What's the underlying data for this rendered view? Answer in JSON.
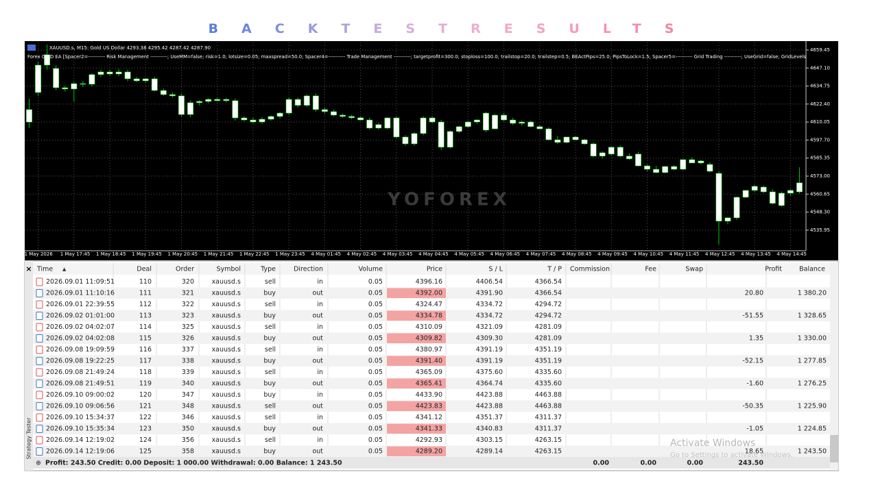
{
  "title": "BACKTESTRESULTS",
  "chart_data": {
    "type": "candlestick",
    "symbol_line": "XAUUSD.s, M15:  Gold US Dollar  4293.38 4295.42 4287.42 4287.90",
    "params_line": "Forex GRID EA [Spacer2=---------- Risk Management ----------; UseMM=false; risk=1.0; lotsize=0.05; maxspread=50.0; Spacer4=---------- Trade Management ----------; targetprofit=300.0; stoploss=100.0; trailstop=20.0; trailstep=0.5; BEActPips=25.0; PipsToLock=1.5; Spacer5=---------- Grid Trading ----------; UseGrid=false; GridLevels",
    "watermark": "YOFOREX",
    "grid": true,
    "candle_color": "#ffffff",
    "wick_color": "#00c800",
    "ylim": [
      4522.3,
      4664.6
    ],
    "yticks": [
      4659.45,
      {
        "value": 4647.1,
        "label": "4647.10"
      },
      4634.75,
      {
        "value": 4622.4,
        "label": "4622.40"
      },
      4610.05,
      {
        "value": 4597.7,
        "label": "4597.70"
      },
      4585.35,
      {
        "value": 4573,
        "label": "4573.00"
      },
      4560.65,
      {
        "value": 4548.3,
        "label": "4548.30"
      },
      4535.95
    ],
    "categories": [
      null,
      "1 May 2026",
      null,
      null,
      null,
      "1 May 17:45",
      null,
      null,
      null,
      "1 May 18:45",
      null,
      null,
      null,
      "1 May 19:45",
      null,
      null,
      null,
      "1 May 20:45",
      null,
      null,
      null,
      "1 May 21:45",
      null,
      null,
      null,
      "1 May 22:45",
      null,
      null,
      null,
      "1 May 23:45",
      null,
      null,
      null,
      "4 May 01:45",
      null,
      null,
      null,
      "4 May 02:45",
      null,
      null,
      null,
      "4 May 03:45",
      null,
      null,
      null,
      "4 May 04:45",
      null,
      null,
      null,
      "4 May 05:45",
      null,
      null,
      null,
      "4 May 06:45",
      null,
      null,
      null,
      "4 May 07:45",
      null,
      null,
      null,
      "4 May 08:45",
      null,
      null,
      null,
      "4 May 09:45",
      null,
      null,
      null,
      "4 May 10:45",
      null,
      null,
      null,
      "4 May 11:45",
      null,
      null,
      null,
      "4 May 12:45",
      null,
      null,
      null,
      "4 May 13:45",
      null,
      null,
      null,
      "4 May 14:45",
      null
    ],
    "candles": [
      [
        4610.0,
        4626.0,
        4606.0,
        4618.6
      ],
      [
        4630.3,
        4651.5,
        4628.0,
        4649.1
      ],
      [
        4649.1,
        4663.2,
        4646.0,
        4656.2
      ],
      [
        4646.8,
        4649.0,
        4632.0,
        4633.6
      ],
      [
        4633.6,
        4635.0,
        4631.0,
        4632.7
      ],
      [
        4632.7,
        4637.4,
        4624.0,
        4636.4
      ],
      [
        4636.4,
        4638.0,
        4634.0,
        4636.0
      ],
      [
        4636.0,
        4643.5,
        4634.5,
        4642.6
      ],
      [
        4642.6,
        4646.0,
        4641.0,
        4644.4
      ],
      [
        4644.4,
        4646.0,
        4642.0,
        4643.0
      ],
      [
        4643.0,
        4646.5,
        4641.5,
        4644.4
      ],
      [
        4644.4,
        4646.0,
        4638.0,
        4639.7
      ],
      [
        4639.7,
        4641.0,
        4637.5,
        4638.3
      ],
      [
        4638.3,
        4640.0,
        4637.0,
        4639.7
      ],
      [
        4639.7,
        4641.0,
        4631.0,
        4631.7
      ],
      [
        4631.7,
        4633.0,
        4628.0,
        4628.9
      ],
      [
        4628.9,
        4630.5,
        4627.0,
        4628.0
      ],
      [
        4628.0,
        4629.5,
        4614.0,
        4615.2
      ],
      [
        4615.2,
        4625.0,
        4613.5,
        4623.3
      ],
      [
        4623.3,
        4625.0,
        4621.5,
        4624.2
      ],
      [
        4624.2,
        4626.5,
        4623.0,
        4625.6
      ],
      [
        4625.6,
        4627.0,
        4624.0,
        4624.7
      ],
      [
        4624.7,
        4626.5,
        4623.5,
        4625.6
      ],
      [
        4624.7,
        4626.0,
        4611.0,
        4612.9
      ],
      [
        4612.9,
        4614.0,
        4610.5,
        4611.5
      ],
      [
        4611.5,
        4613.0,
        4609.0,
        4610.1
      ],
      [
        4610.1,
        4613.5,
        4609.0,
        4612.0
      ],
      [
        4612.0,
        4614.5,
        4611.0,
        4613.9
      ],
      [
        4613.9,
        4617.0,
        4612.5,
        4616.2
      ],
      [
        4616.2,
        4627.0,
        4615.0,
        4625.6
      ],
      [
        4625.6,
        4627.0,
        4620.0,
        4621.5
      ],
      [
        4621.5,
        4629.0,
        4620.5,
        4628.0
      ],
      [
        4628.0,
        4629.5,
        4617.0,
        4618.6
      ],
      [
        4618.6,
        4620.0,
        4616.0,
        4617.2
      ],
      [
        4617.2,
        4618.5,
        4614.0,
        4614.8
      ],
      [
        4614.8,
        4616.0,
        4613.0,
        4613.9
      ],
      [
        4613.9,
        4615.0,
        4612.0,
        4613.0
      ],
      [
        4613.0,
        4614.0,
        4611.0,
        4611.5
      ],
      [
        4611.5,
        4613.0,
        4605.0,
        4605.9
      ],
      [
        4605.9,
        4609.5,
        4605.0,
        4608.3
      ],
      [
        4605.9,
        4613.5,
        4605.0,
        4612.9
      ],
      [
        4612.9,
        4614.0,
        4599.0,
        4599.8
      ],
      [
        4599.8,
        4601.0,
        4594.0,
        4595.1
      ],
      [
        4595.1,
        4603.0,
        4594.0,
        4602.2
      ],
      [
        4602.2,
        4614.0,
        4601.0,
        4612.9
      ],
      [
        4612.9,
        4614.0,
        4609.0,
        4610.1
      ],
      [
        4610.1,
        4611.5,
        4591.0,
        4592.8
      ],
      [
        4592.8,
        4604.5,
        4592.0,
        4603.6
      ],
      [
        4603.6,
        4607.5,
        4602.5,
        4606.9
      ],
      [
        4606.9,
        4611.0,
        4606.0,
        4610.1
      ],
      [
        4610.1,
        4612.0,
        4609.0,
        4611.5
      ],
      [
        4604.5,
        4617.0,
        4603.0,
        4616.2
      ],
      [
        4605.4,
        4615.5,
        4605.0,
        4614.8
      ],
      [
        4614.8,
        4616.5,
        4610.5,
        4611.5
      ],
      [
        4611.5,
        4613.0,
        4608.0,
        4609.2
      ],
      [
        4609.2,
        4611.0,
        4607.5,
        4610.1
      ],
      [
        4610.1,
        4611.0,
        4606.5,
        4606.9
      ],
      [
        4606.9,
        4608.0,
        4605.0,
        4605.4
      ],
      [
        4605.4,
        4606.5,
        4597.5,
        4597.9
      ],
      [
        4597.9,
        4600.5,
        4595.0,
        4596.1
      ],
      [
        4596.1,
        4600.0,
        4595.5,
        4599.8
      ],
      [
        4599.8,
        4600.5,
        4597.5,
        4597.9
      ],
      [
        4597.9,
        4598.5,
        4594.5,
        4595.1
      ],
      [
        4595.1,
        4596.0,
        4586.0,
        4586.7
      ],
      [
        4586.7,
        4590.0,
        4585.0,
        4589.0
      ],
      [
        4588.1,
        4593.5,
        4587.0,
        4592.8
      ],
      [
        4592.8,
        4594.0,
        4586.0,
        4586.7
      ],
      [
        4586.7,
        4588.5,
        4584.0,
        4584.8
      ],
      [
        4588.1,
        4589.5,
        4579.5,
        4580.0
      ],
      [
        4580.0,
        4581.0,
        4576.5,
        4577.7
      ],
      [
        4577.7,
        4580.0,
        4575.0,
        4575.4
      ],
      [
        4575.4,
        4580.0,
        4575.0,
        4579.6
      ],
      [
        4579.6,
        4580.5,
        4577.0,
        4577.7
      ],
      [
        4577.7,
        4584.5,
        4577.0,
        4584.3
      ],
      [
        4584.3,
        4586.0,
        4582.0,
        4582.0
      ],
      [
        4582.0,
        4584.0,
        4581.0,
        4583.4
      ],
      [
        4581.0,
        4582.5,
        4575.5,
        4576.3
      ],
      [
        4574.9,
        4576.0,
        4526.1,
        4542.1
      ],
      [
        4542.1,
        4544.8,
        4540.0,
        4544.4
      ],
      [
        4544.4,
        4559.0,
        4543.0,
        4558.5
      ],
      [
        4558.5,
        4563.5,
        4558.0,
        4563.2
      ],
      [
        4563.2,
        4567.0,
        4562.0,
        4566.0
      ],
      [
        4562.2,
        4566.5,
        4561.5,
        4565.5
      ],
      [
        4562.2,
        4564.0,
        4553.5,
        4554.3
      ],
      [
        4552.8,
        4562.5,
        4552.0,
        4561.3
      ],
      [
        4561.3,
        4564.0,
        4559.5,
        4563.2
      ],
      [
        4562.2,
        4579.0,
        4561.0,
        4568.4
      ]
    ]
  },
  "table": {
    "columns": [
      "Time",
      "Deal",
      "Order",
      "Symbol",
      "Type",
      "Direction",
      "Volume",
      "Price",
      "S / L",
      "T / P",
      "Commission",
      "Fee",
      "Swap",
      "Profit",
      "Balance"
    ],
    "rows": [
      [
        "2026.09.01 11:09:51",
        "110",
        "320",
        "xauusd.s",
        "sell",
        "in",
        "0.05",
        "4396.16",
        "4406.54",
        "4366.54",
        null,
        null,
        null,
        null,
        null
      ],
      [
        "2026.09.01 11:10:16",
        "111",
        "321",
        "xauusd.s",
        "buy",
        "out",
        "0.05",
        "4392.00",
        "4391.90",
        "4366.54",
        null,
        null,
        null,
        "20.80",
        "1 380.20"
      ],
      [
        "2026.09.01 22:39:55",
        "112",
        "322",
        "xauusd.s",
        "sell",
        "in",
        "0.05",
        "4324.47",
        "4334.72",
        "4294.72",
        null,
        null,
        null,
        null,
        null
      ],
      [
        "2026.09.02 01:01:00",
        "113",
        "323",
        "xauusd.s",
        "buy",
        "out",
        "0.05",
        "4334.78",
        "4334.72",
        "4294.72",
        null,
        null,
        null,
        "-51.55",
        "1 328.65"
      ],
      [
        "2026.09.02 04:02:07",
        "114",
        "325",
        "xauusd.s",
        "sell",
        "in",
        "0.05",
        "4310.09",
        "4321.09",
        "4281.09",
        null,
        null,
        null,
        null,
        null
      ],
      [
        "2026.09.02 04:02:08",
        "115",
        "326",
        "xauusd.s",
        "buy",
        "out",
        "0.05",
        "4309.82",
        "4309.30",
        "4281.09",
        null,
        null,
        null,
        "1.35",
        "1 330.00"
      ],
      [
        "2026.09.08 19:09:59",
        "116",
        "337",
        "xauusd.s",
        "sell",
        "in",
        "0.05",
        "4380.97",
        "4391.19",
        "4351.19",
        null,
        null,
        null,
        null,
        null
      ],
      [
        "2026.09.08 19:22:25",
        "117",
        "338",
        "xauusd.s",
        "buy",
        "out",
        "0.05",
        "4391.40",
        "4391.19",
        "4351.19",
        null,
        null,
        null,
        "-52.15",
        "1 277.85"
      ],
      [
        "2026.09.08 21:49:24",
        "118",
        "339",
        "xauusd.s",
        "sell",
        "in",
        "0.05",
        "4365.09",
        "4375.60",
        "4335.60",
        null,
        null,
        null,
        null,
        null
      ],
      [
        "2026.09.08 21:49:51",
        "119",
        "340",
        "xauusd.s",
        "buy",
        "out",
        "0.05",
        "4365.41",
        "4364.74",
        "4335.60",
        null,
        null,
        null,
        "-1.60",
        "1 276.25"
      ],
      [
        "2026.09.10 09:00:02",
        "120",
        "347",
        "xauusd.s",
        "buy",
        "in",
        "0.05",
        "4433.90",
        "4423.88",
        "4463.88",
        null,
        null,
        null,
        null,
        null
      ],
      [
        "2026.09.10 09:06:56",
        "121",
        "348",
        "xauusd.s",
        "sell",
        "out",
        "0.05",
        "4423.83",
        "4423.88",
        "4463.88",
        null,
        null,
        null,
        "-50.35",
        "1 225.90"
      ],
      [
        "2026.09.10 15:34:37",
        "122",
        "346",
        "xauusd.s",
        "sell",
        "in",
        "0.05",
        "4341.12",
        "4351.37",
        "4311.37",
        null,
        null,
        null,
        null,
        null
      ],
      [
        "2026.09.10 15:35:34",
        "123",
        "350",
        "xauusd.s",
        "buy",
        "out",
        "0.05",
        "4341.33",
        "4340.83",
        "4311.37",
        null,
        null,
        null,
        "-1.05",
        "1 224.85"
      ],
      [
        "2026.09.14 12:19:02",
        "124",
        "356",
        "xauusd.s",
        "sell",
        "in",
        "0.05",
        "4292.93",
        "4303.15",
        "4263.15",
        null,
        null,
        null,
        null,
        null
      ],
      [
        "2026.09.14 12:19:06",
        "125",
        "358",
        "xauusd.s",
        "buy",
        "out",
        "0.05",
        "4289.20",
        "4289.14",
        "4263.15",
        null,
        null,
        null,
        "18.65",
        "1 243.50"
      ]
    ],
    "footer": {
      "summary": "Profit: 243.50  Credit: 0.00  Deposit: 1 000.00  Withdrawal: 0.00  Balance: 1 243.50",
      "commission": "0.00",
      "fee": "0.00",
      "swap": "0.00",
      "profit": "243.50"
    }
  },
  "side_tab": "Strategy Tester",
  "overlay": {
    "line1": "Activate Windows",
    "line2": "Go to Settings to activate Windows."
  }
}
